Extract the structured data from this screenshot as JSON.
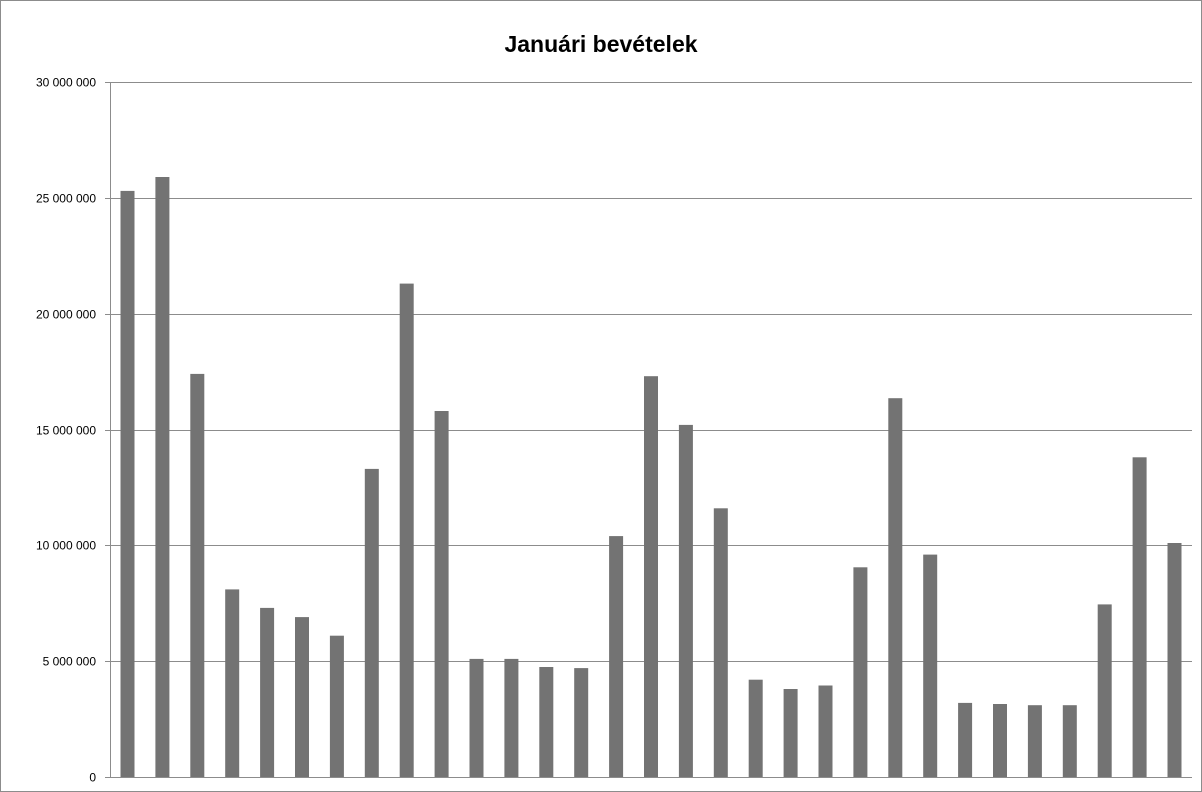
{
  "colors": {
    "bar": "#737373",
    "grid": "#8c8c8c",
    "axis": "#8c8c8c",
    "background": "#ffffff"
  },
  "chart_data": {
    "type": "bar",
    "title": "Januári bevételek",
    "xlabel": "",
    "ylabel": "",
    "ylim": [
      0,
      30000000
    ],
    "grid": true,
    "yticks": [
      0,
      5000000,
      10000000,
      15000000,
      20000000,
      25000000,
      30000000
    ],
    "ytick_labels": [
      "0",
      "5 000 000",
      "10 000 000",
      "15 000 000",
      "20 000 000",
      "25 000 000",
      "30 000 000"
    ],
    "values": [
      25300000,
      25900000,
      17400000,
      8100000,
      7300000,
      6900000,
      6100000,
      13300000,
      21300000,
      15800000,
      5100000,
      5100000,
      4750000,
      4700000,
      10400000,
      17300000,
      15200000,
      11600000,
      4200000,
      3800000,
      3950000,
      9050000,
      16350000,
      9600000,
      3200000,
      3150000,
      3100000,
      3100000,
      7450000,
      13800000,
      10100000
    ]
  }
}
